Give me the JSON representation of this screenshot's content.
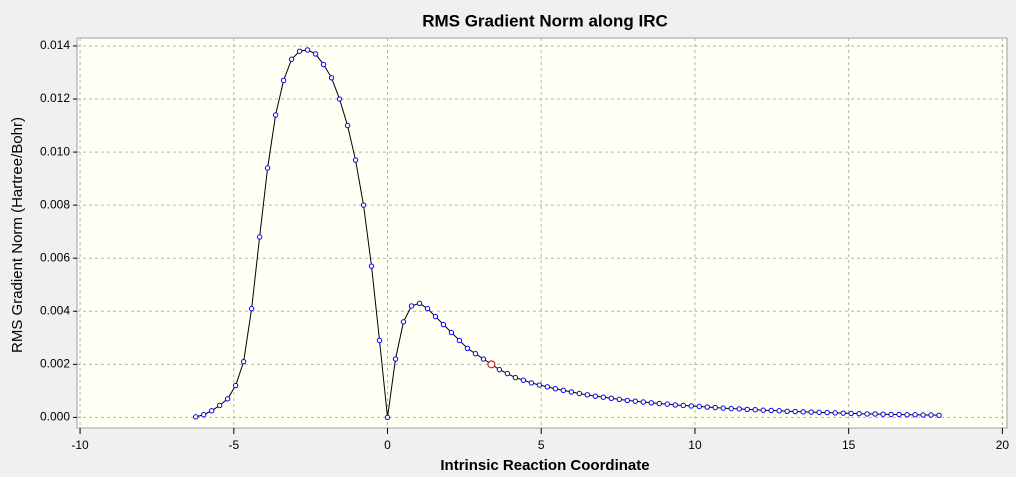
{
  "chart_data": {
    "type": "line",
    "title": "RMS Gradient Norm along IRC",
    "x_label": "Intrinsic Reaction Coordinate",
    "y_label": "RMS Gradient Norm (Hartree/Bohr)",
    "x": [
      -6.24,
      -5.98,
      -5.72,
      -5.46,
      -5.2,
      -4.94,
      -4.68,
      -4.42,
      -4.16,
      -3.9,
      -3.64,
      -3.38,
      -3.12,
      -2.86,
      -2.6,
      -2.34,
      -2.08,
      -1.82,
      -1.56,
      -1.3,
      -1.04,
      -0.78,
      -0.52,
      -0.26,
      0,
      0.26,
      0.52,
      0.78,
      1.04,
      1.3,
      1.56,
      1.82,
      2.08,
      2.34,
      2.6,
      2.86,
      3.12,
      3.38,
      3.64,
      3.9,
      4.16,
      4.42,
      4.68,
      4.94,
      5.2,
      5.46,
      5.72,
      5.98,
      6.24,
      6.5,
      6.76,
      7.02,
      7.28,
      7.54,
      7.8,
      8.06,
      8.32,
      8.58,
      8.84,
      9.1,
      9.36,
      9.62,
      9.88,
      10.14,
      10.4,
      10.66,
      10.92,
      11.18,
      11.44,
      11.7,
      11.96,
      12.22,
      12.48,
      12.74,
      13,
      13.26,
      13.52,
      13.78,
      14.04,
      14.3,
      14.56,
      14.82,
      15.08,
      15.34,
      15.6,
      15.86,
      16.12,
      16.38,
      16.64,
      16.9,
      17.16,
      17.42,
      17.68,
      17.94
    ],
    "values": [
      2e-05,
      0.0001,
      0.00025,
      0.00045,
      0.0007,
      0.0012,
      0.0021,
      0.0041,
      0.0068,
      0.0094,
      0.0114,
      0.0127,
      0.0135,
      0.0138,
      0.01385,
      0.0137,
      0.0133,
      0.0128,
      0.012,
      0.011,
      0.0097,
      0.008,
      0.0057,
      0.0029,
      0,
      0.0022,
      0.0036,
      0.0042,
      0.0043,
      0.0041,
      0.0038,
      0.0035,
      0.0032,
      0.0029,
      0.0026,
      0.0024,
      0.0022,
      0.002,
      0.0018,
      0.00165,
      0.0015,
      0.0014,
      0.0013,
      0.00122,
      0.00115,
      0.00108,
      0.00102,
      0.00096,
      0.0009,
      0.00085,
      0.0008,
      0.00076,
      0.00072,
      0.00068,
      0.00064,
      0.00061,
      0.00058,
      0.00055,
      0.00052,
      0.0005,
      0.00047,
      0.00045,
      0.00043,
      0.00041,
      0.00039,
      0.00037,
      0.00035,
      0.00033,
      0.00032,
      0.0003,
      0.00029,
      0.00027,
      0.00026,
      0.00025,
      0.00023,
      0.00022,
      0.00021,
      0.0002,
      0.00019,
      0.00018,
      0.00017,
      0.00016,
      0.00015,
      0.00014,
      0.00013,
      0.00013,
      0.00012,
      0.00011,
      0.00011,
      0.0001,
      0.0001,
      9e-05,
      9e-05,
      8e-05
    ],
    "line_color": "#000000",
    "marker_color": "#0000ff",
    "highlight_index": 37,
    "highlight_color": "#c00000",
    "xlim": [
      -10.1,
      20.15
    ],
    "ylim": [
      -0.0004,
      0.0143
    ],
    "xticks": [
      -10,
      -5,
      0,
      5,
      10,
      15,
      20
    ],
    "yticks": [
      {
        "value": 0,
        "label": "0.000"
      },
      {
        "value": 0.002,
        "label": "0.002"
      },
      {
        "value": 0.004,
        "label": "0.004"
      },
      {
        "value": 0.006,
        "label": "0.006"
      },
      {
        "value": 0.008,
        "label": "0.008"
      },
      {
        "value": 0.01,
        "label": "0.010"
      },
      {
        "value": 0.012,
        "label": "0.012"
      },
      {
        "value": 0.014,
        "label": "0.014"
      }
    ],
    "grid": true
  }
}
